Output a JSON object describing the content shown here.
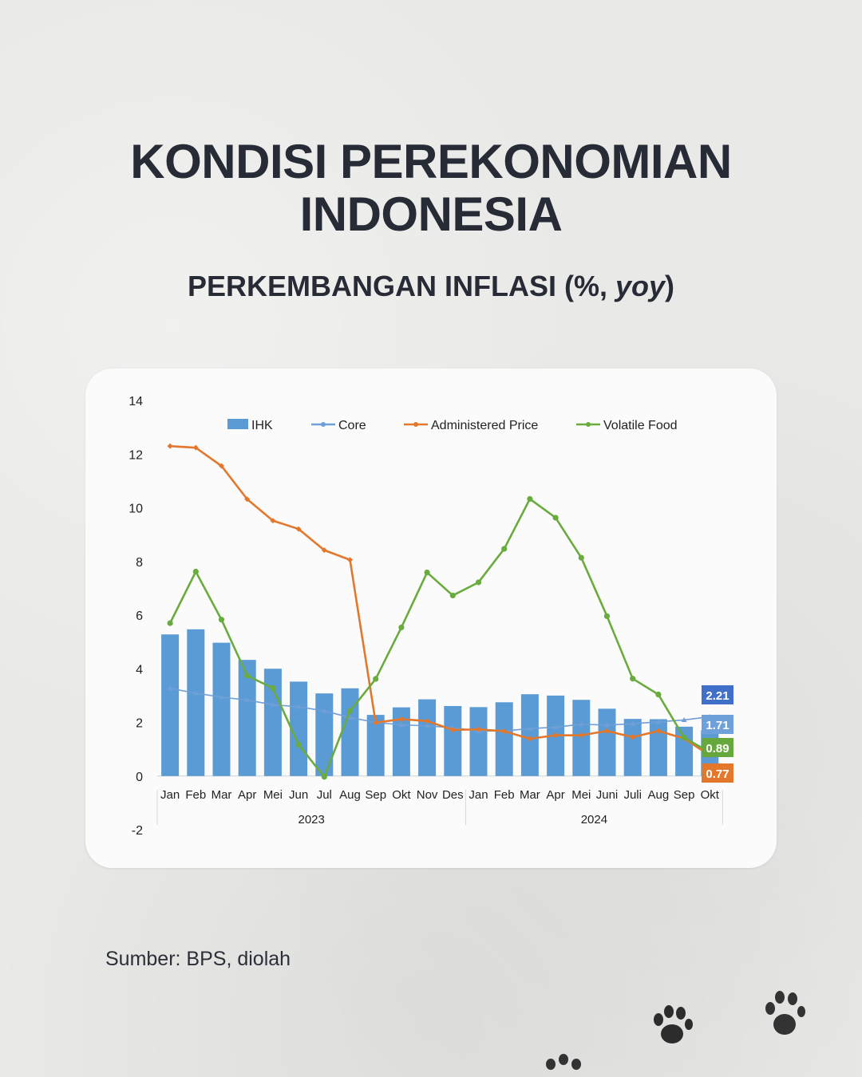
{
  "title_line1": "KONDISI PEREKONOMIAN",
  "title_line2": "INDONESIA",
  "subtitle_main": "PERKEMBANGAN INFLASI (%, ",
  "subtitle_italic": "yoy",
  "subtitle_end": ")",
  "source": "Sumber: BPS, diolah",
  "chart_data": {
    "type": "bar",
    "categories": [
      "Jan",
      "Feb",
      "Mar",
      "Apr",
      "Mei",
      "Jun",
      "Jul",
      "Aug",
      "Sep",
      "Okt",
      "Nov",
      "Des",
      "Jan",
      "Feb",
      "Mar",
      "Apr",
      "Mei",
      "Juni",
      "Juli",
      "Aug",
      "Sep",
      "Okt"
    ],
    "year_groups": [
      {
        "label": "2023",
        "start": 0,
        "end": 11
      },
      {
        "label": "2024",
        "start": 12,
        "end": 21
      }
    ],
    "ylim": [
      -2,
      14
    ],
    "yticks": [
      -2,
      0,
      2,
      4,
      6,
      8,
      10,
      12,
      14
    ],
    "series": [
      {
        "name": "IHK",
        "kind": "bar",
        "color": "#5b9bd5",
        "values": [
          5.28,
          5.47,
          4.97,
          4.33,
          4.0,
          3.52,
          3.08,
          3.27,
          2.28,
          2.56,
          2.86,
          2.61,
          2.57,
          2.75,
          3.05,
          3.0,
          2.84,
          2.51,
          2.13,
          2.12,
          1.84,
          1.71
        ]
      },
      {
        "name": "Core",
        "kind": "line",
        "color": "#6f9fd6",
        "marker": "triangle",
        "values": [
          3.27,
          3.09,
          2.94,
          2.83,
          2.66,
          2.58,
          2.43,
          2.18,
          2.0,
          1.91,
          1.87,
          1.8,
          1.68,
          1.68,
          1.77,
          1.82,
          1.93,
          1.9,
          1.95,
          2.02,
          2.09,
          2.21
        ]
      },
      {
        "name": "Administered Price",
        "kind": "line",
        "color": "#e3772c",
        "marker": "diamond",
        "values": [
          12.3,
          12.24,
          11.56,
          10.32,
          9.52,
          9.21,
          8.42,
          8.06,
          1.99,
          2.12,
          2.05,
          1.72,
          1.74,
          1.67,
          1.39,
          1.52,
          1.52,
          1.68,
          1.45,
          1.68,
          1.4,
          0.77
        ]
      },
      {
        "name": "Volatile Food",
        "kind": "line",
        "color": "#6aab3f",
        "marker": "circle",
        "values": [
          5.7,
          7.62,
          5.83,
          3.74,
          3.28,
          1.17,
          -0.03,
          2.42,
          3.62,
          5.54,
          7.59,
          6.73,
          7.22,
          8.47,
          10.33,
          9.63,
          8.14,
          5.96,
          3.63,
          3.04,
          1.43,
          0.89
        ]
      }
    ],
    "end_labels": [
      {
        "series": "Core",
        "text": "2.21",
        "color": "#3f6fc6"
      },
      {
        "series": "IHK",
        "text": "1.71",
        "color": "#6ea1d9"
      },
      {
        "series": "Volatile Food",
        "text": "0.89",
        "color": "#66a83b"
      },
      {
        "series": "Administered Price",
        "text": "0.77",
        "color": "#e3772c"
      }
    ],
    "legend": "top",
    "grid": false,
    "xlabel": "",
    "ylabel": ""
  }
}
